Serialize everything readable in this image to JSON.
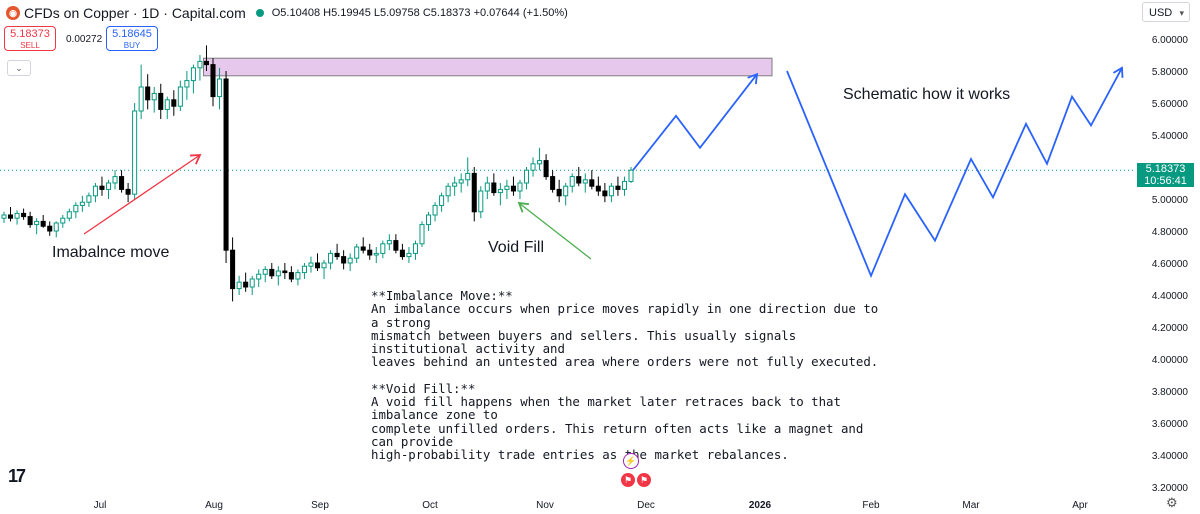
{
  "header": {
    "logo_glyph": "◉",
    "title": "CFDs on Copper · 1D · Capital.com",
    "ohlc": "O5.10408 H5.19945 L5.09758 C5.18373 +0.07644 (+1.50%)"
  },
  "trade": {
    "sell_price": "5.18373",
    "sell_label": "SELL",
    "spread": "0.00272",
    "buy_price": "5.18645",
    "buy_label": "BUY"
  },
  "currency": "USD",
  "current_price": {
    "price": "5.18373",
    "countdown": "10:56:41"
  },
  "annotations": {
    "imbalance_label": "Imabalnce move",
    "void_label": "Void Fill",
    "schematic_label": "Schematic how it works",
    "explanation": {
      "imbalance_heading": "**Imbalance Move:**",
      "imbalance_text_1": "An imbalance occurs when price moves rapidly in one direction due to a strong",
      "imbalance_text_2": "mismatch between buyers and sellers. This usually signals institutional activity and",
      "imbalance_text_3": "leaves behind an untested area where orders were not fully executed.",
      "void_heading": "**Void Fill:**",
      "void_text_1": "A void fill happens when the market later retraces back to that imbalance zone to",
      "void_text_2": "complete unfilled orders. This return often acts like a magnet and can provide",
      "void_text_3": "high-probability trade entries as the market rebalances."
    }
  },
  "colors": {
    "up": "#089981",
    "down": "#000000",
    "zone_fill": "#e1bee7",
    "projection": "#2962ff",
    "arrow_red": "#f23645",
    "arrow_green": "#4caf50"
  },
  "icons": {
    "tradingview_logo": "tradingview-logo",
    "settings": "gear-icon",
    "events": "calendar-event-icon"
  },
  "chart_data": {
    "type": "candlestick",
    "y_axis": {
      "ticks": [
        "6.00000",
        "5.80000",
        "5.60000",
        "5.40000",
        "5.20000",
        "5.00000",
        "4.80000",
        "4.60000",
        "4.40000",
        "4.20000",
        "4.00000",
        "3.80000",
        "3.60000",
        "3.40000",
        "3.20000"
      ],
      "ylim": [
        3.17,
        6.05
      ]
    },
    "x_axis": {
      "ticks": [
        "Jul",
        "Aug",
        "Sep",
        "Oct",
        "Nov",
        "Dec",
        "2026",
        "Feb",
        "Mar",
        "Apr"
      ]
    },
    "imbalance_zone": {
      "low": 5.77,
      "high": 5.88
    },
    "candles": [
      [
        4.88,
        4.92,
        4.85,
        4.9
      ],
      [
        4.9,
        4.95,
        4.86,
        4.88
      ],
      [
        4.88,
        4.93,
        4.84,
        4.91
      ],
      [
        4.91,
        4.94,
        4.87,
        4.89
      ],
      [
        4.89,
        4.92,
        4.82,
        4.84
      ],
      [
        4.84,
        4.88,
        4.78,
        4.86
      ],
      [
        4.86,
        4.9,
        4.82,
        4.83
      ],
      [
        4.83,
        4.86,
        4.77,
        4.8
      ],
      [
        4.8,
        4.86,
        4.76,
        4.85
      ],
      [
        4.85,
        4.9,
        4.82,
        4.88
      ],
      [
        4.88,
        4.94,
        4.86,
        4.92
      ],
      [
        4.92,
        4.98,
        4.88,
        4.96
      ],
      [
        4.96,
        5.02,
        4.92,
        4.98
      ],
      [
        4.98,
        5.04,
        4.95,
        5.02
      ],
      [
        5.02,
        5.1,
        4.98,
        5.08
      ],
      [
        5.08,
        5.14,
        5.02,
        5.06
      ],
      [
        5.06,
        5.12,
        5.0,
        5.1
      ],
      [
        5.1,
        5.18,
        5.06,
        5.14
      ],
      [
        5.14,
        5.18,
        5.04,
        5.06
      ],
      [
        5.06,
        5.1,
        4.98,
        5.03
      ],
      [
        5.03,
        5.6,
        5.0,
        5.55
      ],
      [
        5.55,
        5.84,
        5.5,
        5.7
      ],
      [
        5.7,
        5.78,
        5.56,
        5.62
      ],
      [
        5.62,
        5.7,
        5.54,
        5.66
      ],
      [
        5.66,
        5.72,
        5.5,
        5.56
      ],
      [
        5.56,
        5.64,
        5.5,
        5.62
      ],
      [
        5.62,
        5.68,
        5.52,
        5.58
      ],
      [
        5.58,
        5.74,
        5.55,
        5.7
      ],
      [
        5.7,
        5.8,
        5.62,
        5.74
      ],
      [
        5.74,
        5.84,
        5.66,
        5.82
      ],
      [
        5.82,
        5.9,
        5.74,
        5.86
      ],
      [
        5.86,
        5.96,
        5.8,
        5.84
      ],
      [
        5.84,
        5.88,
        5.58,
        5.64
      ],
      [
        5.64,
        5.82,
        5.56,
        5.75
      ],
      [
        5.75,
        5.8,
        4.6,
        4.68
      ],
      [
        4.68,
        4.76,
        4.36,
        4.44
      ],
      [
        4.44,
        4.52,
        4.4,
        4.48
      ],
      [
        4.48,
        4.54,
        4.42,
        4.45
      ],
      [
        4.45,
        4.52,
        4.4,
        4.5
      ],
      [
        4.5,
        4.56,
        4.45,
        4.53
      ],
      [
        4.53,
        4.58,
        4.48,
        4.56
      ],
      [
        4.56,
        4.6,
        4.5,
        4.52
      ],
      [
        4.52,
        4.58,
        4.46,
        4.55
      ],
      [
        4.55,
        4.6,
        4.5,
        4.54
      ],
      [
        4.54,
        4.58,
        4.48,
        4.5
      ],
      [
        4.5,
        4.56,
        4.46,
        4.54
      ],
      [
        4.54,
        4.6,
        4.5,
        4.58
      ],
      [
        4.58,
        4.64,
        4.54,
        4.6
      ],
      [
        4.6,
        4.66,
        4.55,
        4.57
      ],
      [
        4.57,
        4.62,
        4.5,
        4.6
      ],
      [
        4.6,
        4.68,
        4.56,
        4.66
      ],
      [
        4.66,
        4.72,
        4.62,
        4.64
      ],
      [
        4.64,
        4.68,
        4.56,
        4.6
      ],
      [
        4.6,
        4.66,
        4.55,
        4.63
      ],
      [
        4.63,
        4.72,
        4.6,
        4.7
      ],
      [
        4.7,
        4.76,
        4.66,
        4.68
      ],
      [
        4.68,
        4.72,
        4.62,
        4.65
      ],
      [
        4.65,
        4.7,
        4.6,
        4.66
      ],
      [
        4.66,
        4.74,
        4.63,
        4.72
      ],
      [
        4.72,
        4.78,
        4.68,
        4.74
      ],
      [
        4.74,
        4.78,
        4.66,
        4.68
      ],
      [
        4.68,
        4.72,
        4.62,
        4.64
      ],
      [
        4.64,
        4.7,
        4.6,
        4.66
      ],
      [
        4.66,
        4.74,
        4.62,
        4.72
      ],
      [
        4.72,
        4.86,
        4.7,
        4.84
      ],
      [
        4.84,
        4.92,
        4.8,
        4.9
      ],
      [
        4.9,
        4.98,
        4.86,
        4.96
      ],
      [
        4.96,
        5.04,
        4.92,
        5.02
      ],
      [
        5.02,
        5.1,
        4.98,
        5.08
      ],
      [
        5.08,
        5.14,
        5.02,
        5.1
      ],
      [
        5.1,
        5.16,
        5.04,
        5.12
      ],
      [
        5.12,
        5.26,
        5.08,
        5.16
      ],
      [
        5.16,
        5.2,
        4.86,
        4.92
      ],
      [
        4.92,
        5.08,
        4.88,
        5.05
      ],
      [
        5.05,
        5.14,
        5.0,
        5.1
      ],
      [
        5.1,
        5.16,
        5.02,
        5.04
      ],
      [
        5.04,
        5.1,
        4.96,
        5.06
      ],
      [
        5.06,
        5.12,
        5.0,
        5.08
      ],
      [
        5.08,
        5.14,
        5.02,
        5.05
      ],
      [
        5.05,
        5.12,
        5.0,
        5.1
      ],
      [
        5.1,
        5.2,
        5.06,
        5.18
      ],
      [
        5.18,
        5.26,
        5.14,
        5.22
      ],
      [
        5.22,
        5.32,
        5.18,
        5.24
      ],
      [
        5.24,
        5.28,
        5.12,
        5.14
      ],
      [
        5.14,
        5.18,
        5.04,
        5.06
      ],
      [
        5.06,
        5.12,
        4.98,
        5.02
      ],
      [
        5.02,
        5.1,
        4.96,
        5.08
      ],
      [
        5.08,
        5.16,
        5.04,
        5.14
      ],
      [
        5.14,
        5.2,
        5.08,
        5.1
      ],
      [
        5.1,
        5.16,
        5.04,
        5.12
      ],
      [
        5.12,
        5.18,
        5.06,
        5.08
      ],
      [
        5.08,
        5.14,
        5.02,
        5.05
      ],
      [
        5.05,
        5.1,
        4.98,
        5.02
      ],
      [
        5.02,
        5.1,
        4.98,
        5.08
      ],
      [
        5.08,
        5.14,
        5.02,
        5.06
      ],
      [
        5.06,
        5.14,
        5.02,
        5.11
      ],
      [
        5.11,
        5.2,
        5.1,
        5.18
      ]
    ],
    "projection_path": [
      [
        "Dec",
        5.18
      ],
      [
        "",
        5.52
      ],
      [
        "",
        5.32
      ],
      [
        "2026",
        5.78
      ],
      [
        "2026",
        5.8
      ],
      [
        "Feb",
        4.52
      ],
      [
        "",
        5.03
      ],
      [
        "",
        4.74
      ],
      [
        "Mar",
        5.25
      ],
      [
        "",
        5.01
      ],
      [
        "",
        5.47
      ],
      [
        "",
        5.22
      ],
      [
        "",
        5.64
      ],
      [
        "Apr",
        5.46
      ],
      [
        "",
        5.82
      ]
    ]
  }
}
